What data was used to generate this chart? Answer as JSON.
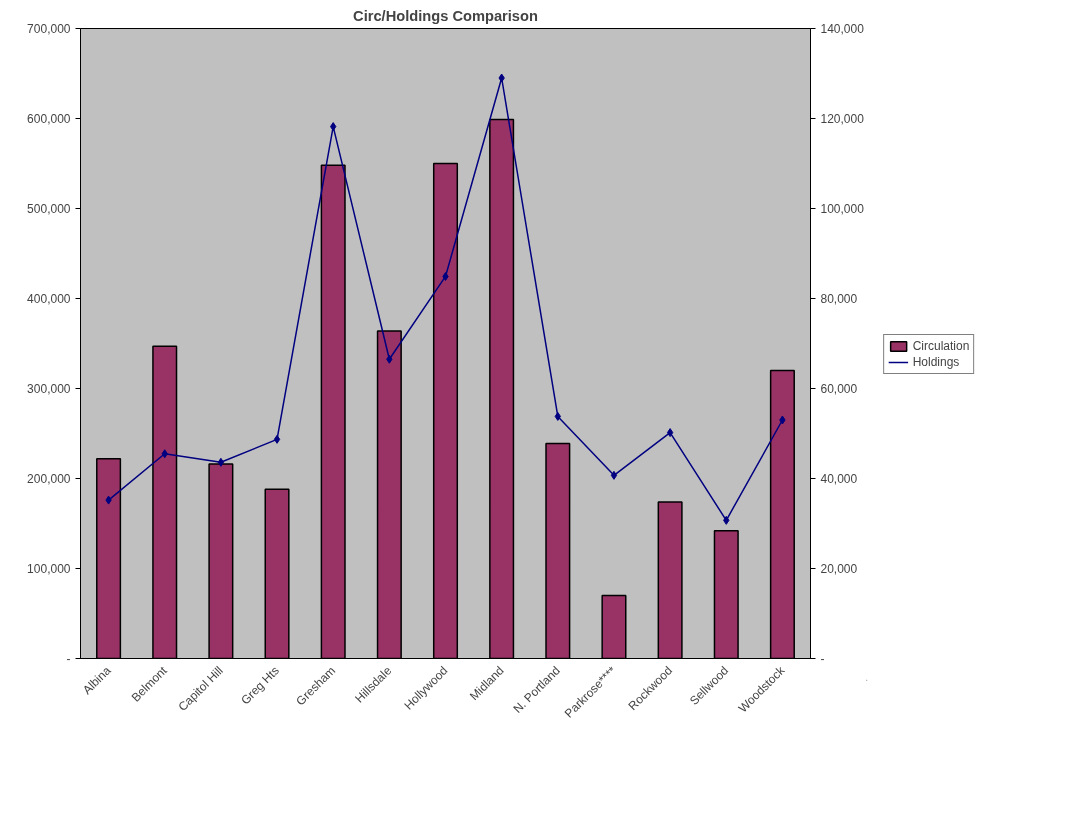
{
  "chart_data": {
    "type": "bar",
    "title": "Circ/Holdings Comparison",
    "categories": [
      "Albina",
      "Belmont",
      "Capitol Hill",
      "Greg Hts",
      "Gresham",
      "Hillsdale",
      "Hollywood",
      "Midland",
      "N. Portland",
      "Parkrose****",
      "Rockwood",
      "Sellwood",
      "Woodstock"
    ],
    "series": [
      {
        "name": "Circulation",
        "color": "#993366",
        "values": [
          222000,
          347000,
          216000,
          188000,
          548000,
          364000,
          550000,
          599000,
          239000,
          70000,
          174000,
          142000,
          320000
        ]
      },
      {
        "name": "Holdings",
        "type": "line",
        "axis": "y2",
        "color": "#000080",
        "marker": "diamond",
        "values": [
          35200,
          45500,
          43600,
          48700,
          118200,
          66500,
          84900,
          129000,
          53800,
          40700,
          50200,
          30700,
          53000
        ]
      }
    ],
    "ylim": [
      0,
      700000
    ],
    "yticks": [
      {
        "value": 0,
        "label": "-"
      },
      {
        "value": 100000,
        "label": "100,000"
      },
      {
        "value": 200000,
        "label": "200,000"
      },
      {
        "value": 300000,
        "label": "300,000"
      },
      {
        "value": 400000,
        "label": "400,000"
      },
      {
        "value": 500000,
        "label": "500,000"
      },
      {
        "value": 600000,
        "label": "600,000"
      },
      {
        "value": 700000,
        "label": "700,000"
      }
    ],
    "y2lim": [
      0,
      140000
    ],
    "y2ticks": [
      {
        "value": 0,
        "label": "-"
      },
      {
        "value": 20000,
        "label": "20,000"
      },
      {
        "value": 40000,
        "label": "40,000"
      },
      {
        "value": 60000,
        "label": "60,000"
      },
      {
        "value": 80000,
        "label": "80,000"
      },
      {
        "value": 100000,
        "label": "100,000"
      },
      {
        "value": 120000,
        "label": "120,000"
      },
      {
        "value": 140000,
        "label": "140,000"
      }
    ],
    "legend": "right",
    "grid": false
  }
}
